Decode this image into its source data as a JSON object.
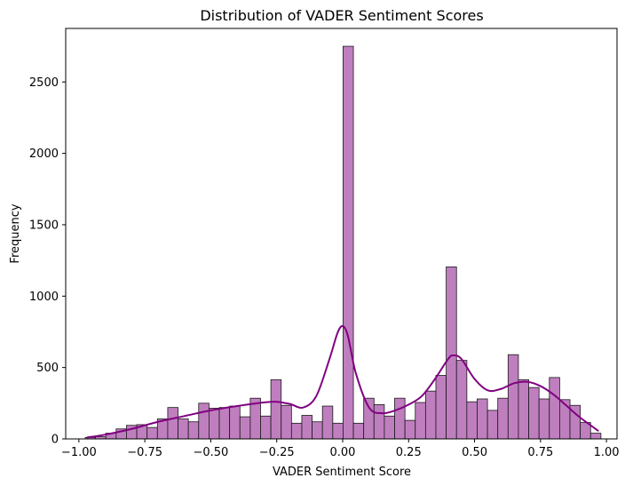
{
  "chart_data": {
    "type": "bar",
    "title": "Distribution of VADER Sentiment Scores",
    "xlabel": "VADER Sentiment Score",
    "ylabel": "Frequency",
    "xlim": [
      -1.05,
      1.04
    ],
    "ylim": [
      0,
      2875
    ],
    "grid": false,
    "colors": {
      "bar_fill": "#bf7fbf",
      "bar_edge": "#1a1a1a",
      "kde": "#800080"
    },
    "x_ticks": [
      {
        "value": -1.0,
        "label": "−1.00"
      },
      {
        "value": -0.75,
        "label": "−0.75"
      },
      {
        "value": -0.5,
        "label": "−0.50"
      },
      {
        "value": -0.25,
        "label": "−0.25"
      },
      {
        "value": 0.0,
        "label": "0.00"
      },
      {
        "value": 0.25,
        "label": "0.25"
      },
      {
        "value": 0.5,
        "label": "0.50"
      },
      {
        "value": 0.75,
        "label": "0.75"
      },
      {
        "value": 1.0,
        "label": "1.00"
      }
    ],
    "y_ticks": [
      {
        "value": 0,
        "label": "0"
      },
      {
        "value": 500,
        "label": "500"
      },
      {
        "value": 1000,
        "label": "1000"
      },
      {
        "value": 1500,
        "label": "1500"
      },
      {
        "value": 2000,
        "label": "2000"
      },
      {
        "value": 2500,
        "label": "2500"
      }
    ],
    "bin_start": -0.976,
    "bin_width": 0.0391,
    "counts": [
      10,
      15,
      40,
      70,
      95,
      100,
      80,
      140,
      220,
      140,
      120,
      250,
      215,
      220,
      230,
      155,
      285,
      160,
      415,
      235,
      110,
      165,
      120,
      230,
      110,
      2750,
      110,
      285,
      240,
      160,
      285,
      130,
      255,
      335,
      445,
      1205,
      550,
      260,
      280,
      200,
      285,
      590,
      415,
      360,
      280,
      430,
      275,
      235,
      115,
      40
    ],
    "kde": {
      "x": [
        -0.97,
        -0.9,
        -0.8,
        -0.7,
        -0.6,
        -0.5,
        -0.4,
        -0.3,
        -0.25,
        -0.2,
        -0.15,
        -0.1,
        -0.05,
        -0.02,
        0.0,
        0.02,
        0.05,
        0.1,
        0.15,
        0.2,
        0.25,
        0.3,
        0.35,
        0.4,
        0.42,
        0.45,
        0.5,
        0.55,
        0.6,
        0.65,
        0.7,
        0.75,
        0.8,
        0.85,
        0.9,
        0.97
      ],
      "y": [
        10,
        30,
        70,
        120,
        160,
        200,
        230,
        255,
        260,
        245,
        220,
        300,
        560,
        740,
        790,
        720,
        460,
        220,
        180,
        200,
        240,
        300,
        420,
        560,
        585,
        560,
        420,
        340,
        350,
        390,
        400,
        370,
        310,
        230,
        150,
        55
      ]
    }
  }
}
